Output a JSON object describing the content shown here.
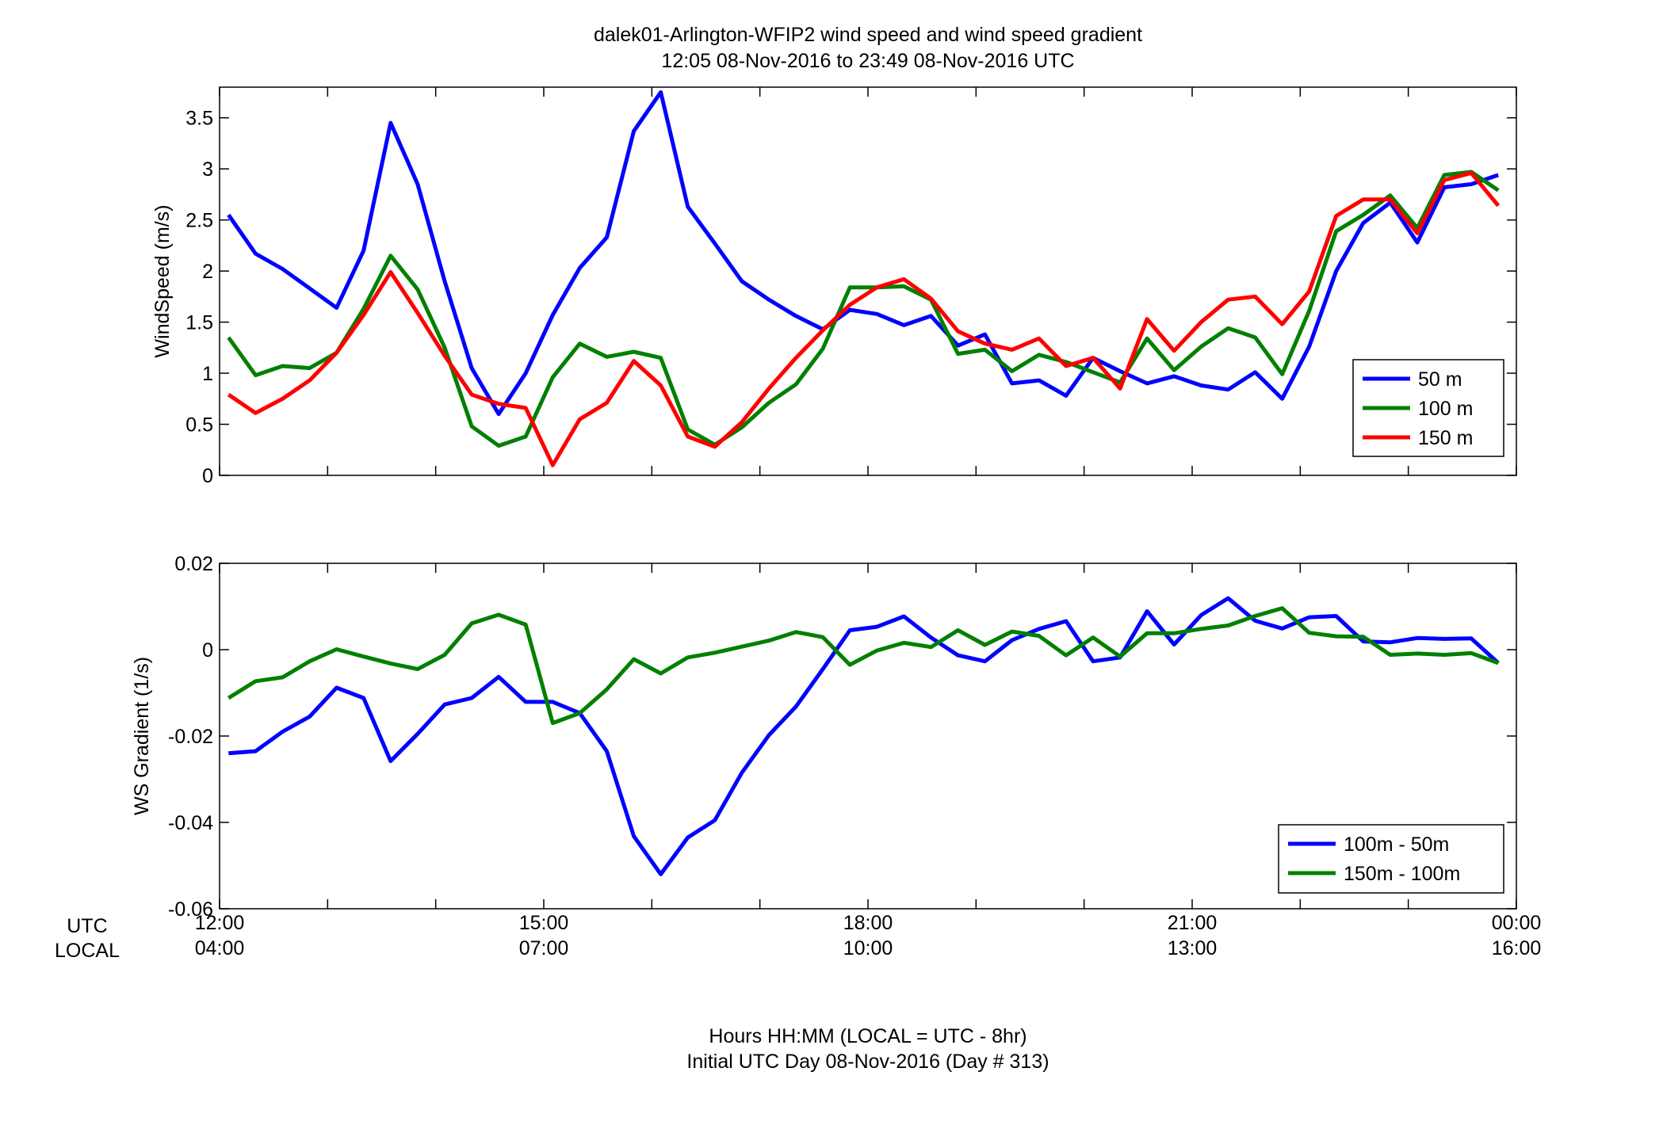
{
  "title_line1": "dalek01-Arlington-WFIP2  wind speed and wind speed gradient",
  "title_line2": "12:05 08-Nov-2016 to 23:49 08-Nov-2016  UTC",
  "xlabel_line1": "Hours HH:MM  (LOCAL = UTC - 8hr)",
  "xlabel_line2": "Initial UTC Day 08-Nov-2016 (Day # 313)",
  "row_labels": {
    "utc": "UTC",
    "local": "LOCAL"
  },
  "x_ticks": [
    {
      "utc": "12:00",
      "local": "04:00",
      "hour": 12
    },
    {
      "utc": "15:00",
      "local": "07:00",
      "hour": 15
    },
    {
      "utc": "18:00",
      "local": "10:00",
      "hour": 18
    },
    {
      "utc": "21:00",
      "local": "13:00",
      "hour": 21
    },
    {
      "utc": "00:00",
      "local": "16:00",
      "hour": 24
    }
  ],
  "chart_data": [
    {
      "type": "line",
      "ylabel": "WindSpeed (m/s)",
      "xlim": [
        12,
        24
      ],
      "ylim": [
        0,
        3.8
      ],
      "yticks": [
        0,
        0.5,
        1,
        1.5,
        2,
        2.5,
        3,
        3.5
      ],
      "ytick_labels": [
        "0",
        "0.5",
        "1",
        "1.5",
        "2",
        "2.5",
        "3",
        "3.5"
      ],
      "legend_position": "lower-right",
      "x": [
        12.083,
        12.333,
        12.583,
        12.833,
        13.083,
        13.333,
        13.583,
        13.833,
        14.083,
        14.333,
        14.583,
        14.833,
        15.083,
        15.333,
        15.583,
        15.833,
        16.083,
        16.333,
        16.583,
        16.833,
        17.083,
        17.333,
        17.583,
        17.833,
        18.083,
        18.333,
        18.583,
        18.833,
        19.083,
        19.333,
        19.583,
        19.833,
        20.083,
        20.333,
        20.583,
        20.833,
        21.083,
        21.333,
        21.583,
        21.833,
        22.083,
        22.333,
        22.583,
        22.833,
        23.083,
        23.333,
        23.583,
        23.833
      ],
      "series": [
        {
          "name": "50 m",
          "color": "#0000ff",
          "values": [
            2.55,
            2.17,
            2.02,
            1.83,
            1.64,
            2.2,
            3.45,
            2.85,
            1.9,
            1.05,
            0.6,
            1.0,
            1.57,
            2.03,
            2.33,
            3.37,
            3.75,
            2.63,
            2.27,
            1.9,
            1.72,
            1.56,
            1.43,
            1.62,
            1.58,
            1.47,
            1.56,
            1.27,
            1.38,
            0.9,
            0.93,
            0.78,
            1.15,
            1.02,
            0.9,
            0.97,
            0.88,
            0.84,
            1.01,
            0.75,
            1.26,
            2.0,
            2.47,
            2.67,
            2.28,
            2.82,
            2.85,
            2.94
          ]
        },
        {
          "name": "100 m",
          "color": "#008000",
          "values": [
            1.35,
            0.98,
            1.07,
            1.05,
            1.2,
            1.63,
            2.15,
            1.82,
            1.25,
            0.48,
            0.29,
            0.38,
            0.96,
            1.29,
            1.16,
            1.21,
            1.15,
            0.45,
            0.3,
            0.47,
            0.71,
            0.89,
            1.24,
            1.84,
            1.84,
            1.85,
            1.72,
            1.19,
            1.23,
            1.02,
            1.18,
            1.11,
            1.01,
            0.91,
            1.34,
            1.03,
            1.26,
            1.44,
            1.35,
            0.99,
            1.61,
            2.39,
            2.55,
            2.74,
            2.42,
            2.94,
            2.97,
            2.79
          ]
        },
        {
          "name": "150 m",
          "color": "#ff0000",
          "values": [
            0.79,
            0.61,
            0.75,
            0.93,
            1.2,
            1.57,
            1.99,
            1.59,
            1.17,
            0.79,
            0.7,
            0.66,
            0.1,
            0.55,
            0.71,
            1.12,
            0.88,
            0.38,
            0.28,
            0.52,
            0.85,
            1.15,
            1.42,
            1.67,
            1.84,
            1.92,
            1.73,
            1.41,
            1.29,
            1.23,
            1.34,
            1.07,
            1.15,
            0.85,
            1.53,
            1.22,
            1.5,
            1.72,
            1.75,
            1.48,
            1.8,
            2.54,
            2.7,
            2.7,
            2.37,
            2.89,
            2.96,
            2.64
          ]
        }
      ]
    },
    {
      "type": "line",
      "ylabel": "WS Gradient (1/s)",
      "xlim": [
        12,
        24
      ],
      "ylim": [
        -0.06,
        0.02
      ],
      "yticks": [
        -0.06,
        -0.04,
        -0.02,
        0,
        0.02
      ],
      "ytick_labels": [
        "-0.06",
        "-0.04",
        "-0.02",
        "0",
        "0.02"
      ],
      "legend_position": "lower-right",
      "x": [
        12.083,
        12.333,
        12.583,
        12.833,
        13.083,
        13.333,
        13.583,
        13.833,
        14.083,
        14.333,
        14.583,
        14.833,
        15.083,
        15.333,
        15.583,
        15.833,
        16.083,
        16.333,
        16.583,
        16.833,
        17.083,
        17.333,
        17.583,
        17.833,
        18.083,
        18.333,
        18.583,
        18.833,
        19.083,
        19.333,
        19.583,
        19.833,
        20.083,
        20.333,
        20.583,
        20.833,
        21.083,
        21.333,
        21.583,
        21.833,
        22.083,
        22.333,
        22.583,
        22.833,
        23.083,
        23.333,
        23.583,
        23.833
      ],
      "series": [
        {
          "name": "100m - 50m",
          "color": "#0000ff",
          "values": [
            -0.024,
            -0.0235,
            -0.019,
            -0.0155,
            -0.0088,
            -0.0112,
            -0.0258,
            -0.0195,
            -0.0127,
            -0.0112,
            -0.0063,
            -0.0121,
            -0.0121,
            -0.0147,
            -0.0235,
            -0.0432,
            -0.052,
            -0.0435,
            -0.0395,
            -0.0285,
            -0.0198,
            -0.0132,
            -0.0045,
            0.0045,
            0.0053,
            0.0077,
            0.0028,
            -0.0013,
            -0.0027,
            0.0022,
            0.0048,
            0.0066,
            -0.0027,
            -0.0018,
            0.0089,
            0.0012,
            0.008,
            0.0119,
            0.0067,
            0.0049,
            0.0075,
            0.0078,
            0.0019,
            0.0017,
            0.0027,
            0.0025,
            0.0026,
            -0.0031
          ]
        },
        {
          "name": "150m - 100m",
          "color": "#008000",
          "values": [
            -0.0112,
            -0.0073,
            -0.0064,
            -0.0027,
            0.0001,
            -0.0016,
            -0.0032,
            -0.0045,
            -0.0012,
            0.0061,
            0.0081,
            0.0058,
            -0.017,
            -0.0147,
            -0.0092,
            -0.0022,
            -0.0055,
            -0.0018,
            -0.0007,
            0.0007,
            0.0021,
            0.0041,
            0.0029,
            -0.0035,
            -0.0002,
            0.0016,
            0.0006,
            0.0045,
            0.0011,
            0.0042,
            0.0032,
            -0.0013,
            0.0028,
            -0.0016,
            0.0038,
            0.0038,
            0.0048,
            0.0056,
            0.0078,
            0.0096,
            0.0039,
            0.0031,
            0.003,
            -0.0012,
            -0.0009,
            -0.0012,
            -0.0008,
            -0.0031
          ]
        }
      ]
    }
  ]
}
